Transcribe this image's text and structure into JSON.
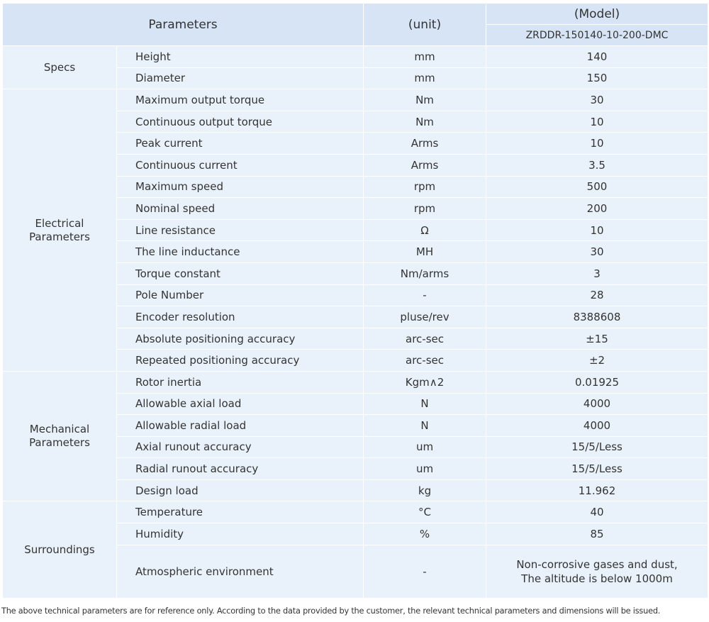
{
  "header": {
    "parameters": "Parameters",
    "unit": "(unit)",
    "model": "(Model)",
    "model_name": "ZRDDR-150140-10-200-DMC"
  },
  "groups": [
    {
      "name": "Specs",
      "rows": [
        [
          "Height",
          "mm",
          "140"
        ],
        [
          "Diameter",
          "mm",
          "150"
        ]
      ]
    },
    {
      "name": "Electrical Parameters",
      "rows": [
        [
          "Maximum output torque",
          "Nm",
          "30"
        ],
        [
          "Continuous output torque",
          "Nm",
          "10"
        ],
        [
          "Peak current",
          "Arms",
          "10"
        ],
        [
          "Continuous current",
          "Arms",
          "3.5"
        ],
        [
          "Maximum speed",
          "rpm",
          "500"
        ],
        [
          "Nominal speed",
          "rpm",
          "200"
        ],
        [
          "Line resistance",
          "Ω",
          "10"
        ],
        [
          "The line inductance",
          "MH",
          "30"
        ],
        [
          "Torque constant",
          "Nm/arms",
          "3"
        ],
        [
          "Pole Number",
          "-",
          "28"
        ],
        [
          "Encoder resolution",
          "pluse/rev",
          "8388608"
        ],
        [
          "Absolute positioning accuracy",
          "arc-sec",
          "±15"
        ],
        [
          "Repeated positioning accuracy",
          "arc-sec",
          "±2"
        ]
      ]
    },
    {
      "name": "Mechanical Parameters",
      "rows": [
        [
          "Rotor inertia",
          "Kgm∧2",
          "0.01925"
        ],
        [
          "Allowable axial load",
          "N",
          "4000"
        ],
        [
          "Allowable radial load",
          "N",
          "4000"
        ],
        [
          "Axial runout accuracy",
          "um",
          "15/5/Less"
        ],
        [
          "Radial runout accuracy",
          "um",
          "15/5/Less"
        ],
        [
          "Design load",
          "kg",
          "11.962"
        ]
      ]
    },
    {
      "name": "Surroundings",
      "rows": [
        [
          "Temperature",
          "°C",
          "40"
        ],
        [
          "Humidity",
          "%",
          "85"
        ],
        [
          "Atmospheric environment",
          "-",
          "Non-corrosive gases and dust,\nThe altitude is below 1000m"
        ]
      ]
    }
  ],
  "footnote": "The above technical parameters are for reference only. According to the data provided by the customer, the relevant technical parameters and dimensions will be issued."
}
